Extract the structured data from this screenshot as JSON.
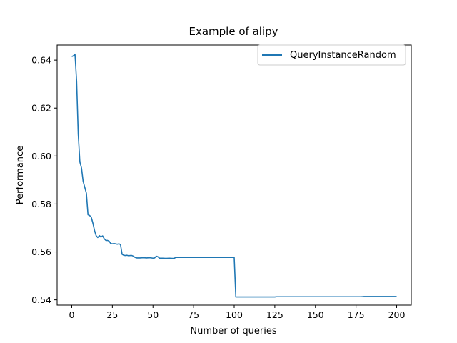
{
  "chart_data": {
    "type": "line",
    "title": "Example of alipy",
    "xlabel": "Number of queries",
    "ylabel": "Performance",
    "xlim": [
      -9,
      209
    ],
    "ylim": [
      0.5378,
      0.6463
    ],
    "xticks": [
      0,
      25,
      50,
      75,
      100,
      125,
      150,
      175,
      200
    ],
    "yticks": [
      0.54,
      0.56,
      0.58,
      0.6,
      0.62,
      0.64
    ],
    "ytick_labels": [
      "0.54",
      "0.56",
      "0.58",
      "0.60",
      "0.62",
      "0.64"
    ],
    "grid": false,
    "legend_position": "upper right",
    "series": [
      {
        "name": "QueryInstanceRandom",
        "color": "#1f77b4",
        "x": [
          0,
          1,
          2,
          3,
          4,
          5,
          6,
          7,
          8,
          9,
          10,
          11,
          12,
          13,
          14,
          15,
          16,
          17,
          18,
          19,
          20,
          21,
          22,
          23,
          24,
          25,
          26,
          27,
          28,
          29,
          30,
          31,
          32,
          33,
          34,
          35,
          36,
          37,
          38,
          39,
          40,
          42,
          44,
          46,
          48,
          50,
          51,
          52,
          53,
          54,
          56,
          58,
          60,
          62,
          63,
          64,
          66,
          70,
          80,
          90,
          100,
          101,
          110,
          120,
          125,
          126,
          140,
          160,
          175,
          178,
          180,
          185,
          190,
          200
        ],
        "y": [
          0.6415,
          0.6418,
          0.6425,
          0.631,
          0.609,
          0.5975,
          0.595,
          0.5895,
          0.587,
          0.5845,
          0.5755,
          0.5752,
          0.5745,
          0.572,
          0.569,
          0.5668,
          0.566,
          0.5668,
          0.5662,
          0.5667,
          0.5655,
          0.5648,
          0.5648,
          0.5645,
          0.5635,
          0.5634,
          0.5635,
          0.5634,
          0.5632,
          0.5634,
          0.5631,
          0.559,
          0.5586,
          0.5585,
          0.5586,
          0.5584,
          0.5585,
          0.5585,
          0.5582,
          0.5577,
          0.5575,
          0.5575,
          0.5576,
          0.5575,
          0.5576,
          0.5574,
          0.5575,
          0.5582,
          0.558,
          0.5574,
          0.5574,
          0.5573,
          0.5574,
          0.5573,
          0.5573,
          0.5577,
          0.5577,
          0.5577,
          0.5577,
          0.5577,
          0.5577,
          0.5412,
          0.5412,
          0.5412,
          0.5412,
          0.5413,
          0.5413,
          0.5413,
          0.5413,
          0.5413,
          0.5414,
          0.5414,
          0.5414,
          0.5414
        ]
      }
    ]
  }
}
